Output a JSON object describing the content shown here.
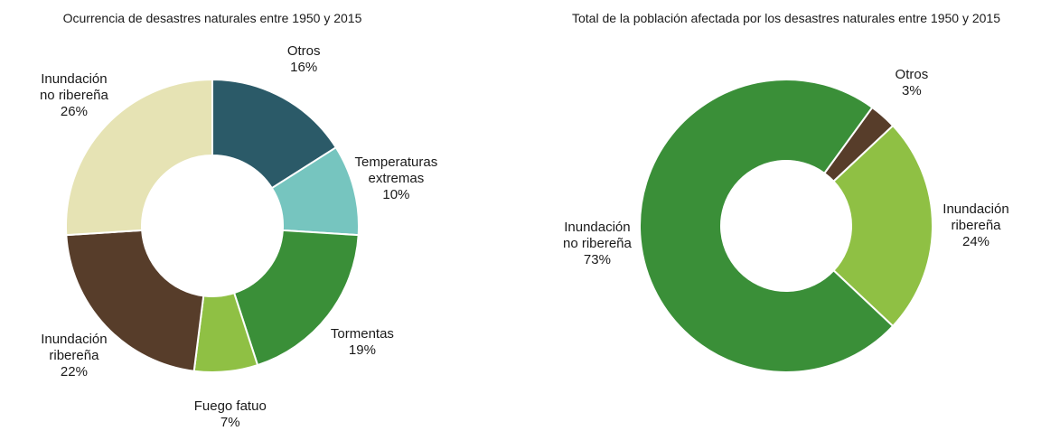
{
  "chart_data": [
    {
      "type": "pie",
      "title": "Ocurrencia de desastres naturales entre 1950 y 2015",
      "donut": true,
      "start_angle": 0,
      "categories": [
        "Otros",
        "Temperaturas\nextremas",
        "Tormentas",
        "Fuego fatuo",
        "Inundación\nribereña",
        "Inundación\nno ribereña"
      ],
      "values": [
        16,
        10,
        19,
        7,
        22,
        26
      ],
      "value_labels": [
        "16%",
        "10%",
        "19%",
        "7%",
        "22%",
        "26%"
      ],
      "colors": [
        "#2b5a68",
        "#76c5bf",
        "#3a8f38",
        "#8fc044",
        "#573d2a",
        "#e6e3b4"
      ]
    },
    {
      "type": "pie",
      "title": "Total de la población afectada por los desastres naturales entre 1950 y 2015",
      "donut": true,
      "start_angle": 36,
      "categories": [
        "Otros",
        "Inundación\nribereña",
        "Inundación\nno ribereña"
      ],
      "values": [
        3,
        24,
        73
      ],
      "value_labels": [
        "3%",
        "24%",
        "73%"
      ],
      "colors": [
        "#573d2a",
        "#8fc044",
        "#3a8f38"
      ]
    }
  ]
}
